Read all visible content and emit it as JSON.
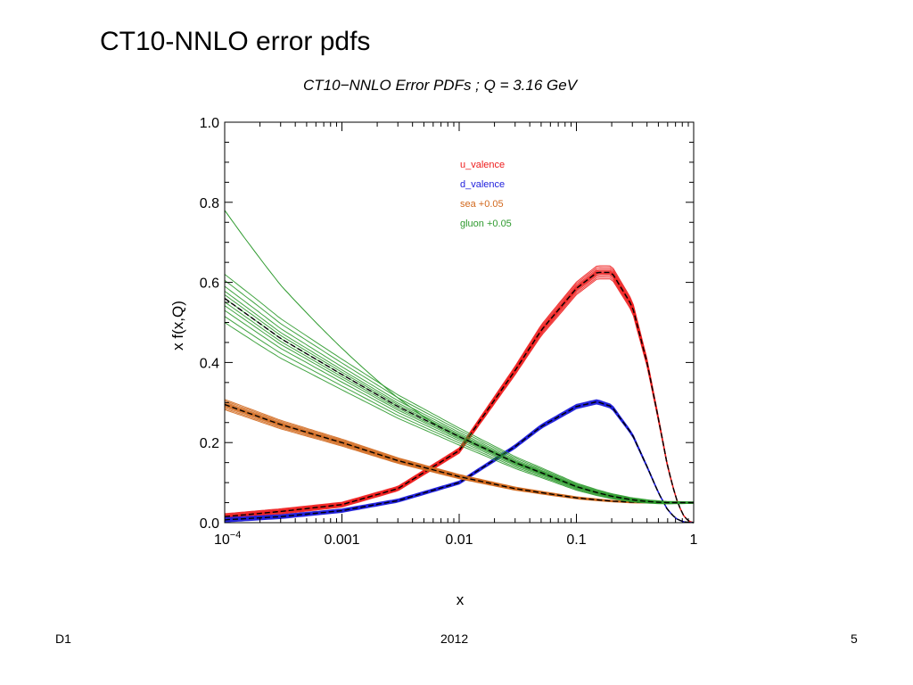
{
  "slide": {
    "title": "CT10-NNLO error pdfs",
    "footer_left": "D1",
    "footer_center": "2012",
    "footer_right": "5"
  },
  "chart_data": {
    "type": "line",
    "title": "CT10−NNLO Error PDFs ; Q = 3.16 GeV",
    "xlabel": "x",
    "ylabel": "x f(x,Q)",
    "xscale": "log",
    "xlim": [
      0.0001,
      1
    ],
    "ylim": [
      0,
      1
    ],
    "xticks": [
      {
        "value": 0.0001,
        "base": "10",
        "exp": "−4"
      },
      {
        "value": 0.001,
        "label": "0.001"
      },
      {
        "value": 0.01,
        "label": "0.01"
      },
      {
        "value": 0.1,
        "label": "0.1"
      },
      {
        "value": 1,
        "label": "1"
      }
    ],
    "yticks": [
      "0.0",
      "0.2",
      "0.4",
      "0.6",
      "0.8",
      "1.0"
    ],
    "legend_position": "top-center",
    "central_curve_color": "#000000",
    "central_curve_style": "dashed",
    "x": [
      0.0001,
      0.0003,
      0.001,
      0.003,
      0.01,
      0.03,
      0.05,
      0.1,
      0.15,
      0.2,
      0.3,
      0.4,
      0.5,
      0.6,
      0.7,
      0.8,
      0.9,
      1.0
    ],
    "series": [
      {
        "name": "u_valence",
        "color": "#ee1c1c",
        "values": [
          0.015,
          0.028,
          0.045,
          0.085,
          0.18,
          0.38,
          0.48,
          0.585,
          0.625,
          0.625,
          0.54,
          0.4,
          0.26,
          0.14,
          0.065,
          0.022,
          0.004,
          0.0
        ],
        "band": 0.012
      },
      {
        "name": "d_valence",
        "color": "#1f1fdc",
        "values": [
          0.007,
          0.015,
          0.03,
          0.055,
          0.1,
          0.19,
          0.24,
          0.29,
          0.302,
          0.29,
          0.22,
          0.14,
          0.075,
          0.032,
          0.011,
          0.003,
          0.0005,
          0.0
        ],
        "band": 0.009
      },
      {
        "name": "sea +0.05",
        "color": "#d2691e",
        "values": [
          0.295,
          0.245,
          0.2,
          0.155,
          0.115,
          0.085,
          0.075,
          0.062,
          0.057,
          0.054,
          0.051,
          0.0505,
          0.05,
          0.05,
          0.05,
          0.05,
          0.05,
          0.05
        ],
        "band": 0.012
      },
      {
        "name": "gluon +0.05",
        "color": "#2e9a2e",
        "values": [
          0.56,
          0.46,
          0.37,
          0.29,
          0.215,
          0.15,
          0.125,
          0.09,
          0.075,
          0.066,
          0.057,
          0.053,
          0.051,
          0.05,
          0.05,
          0.05,
          0.05,
          0.05
        ],
        "band": 0.035,
        "outlier_start": 0.78
      }
    ]
  }
}
